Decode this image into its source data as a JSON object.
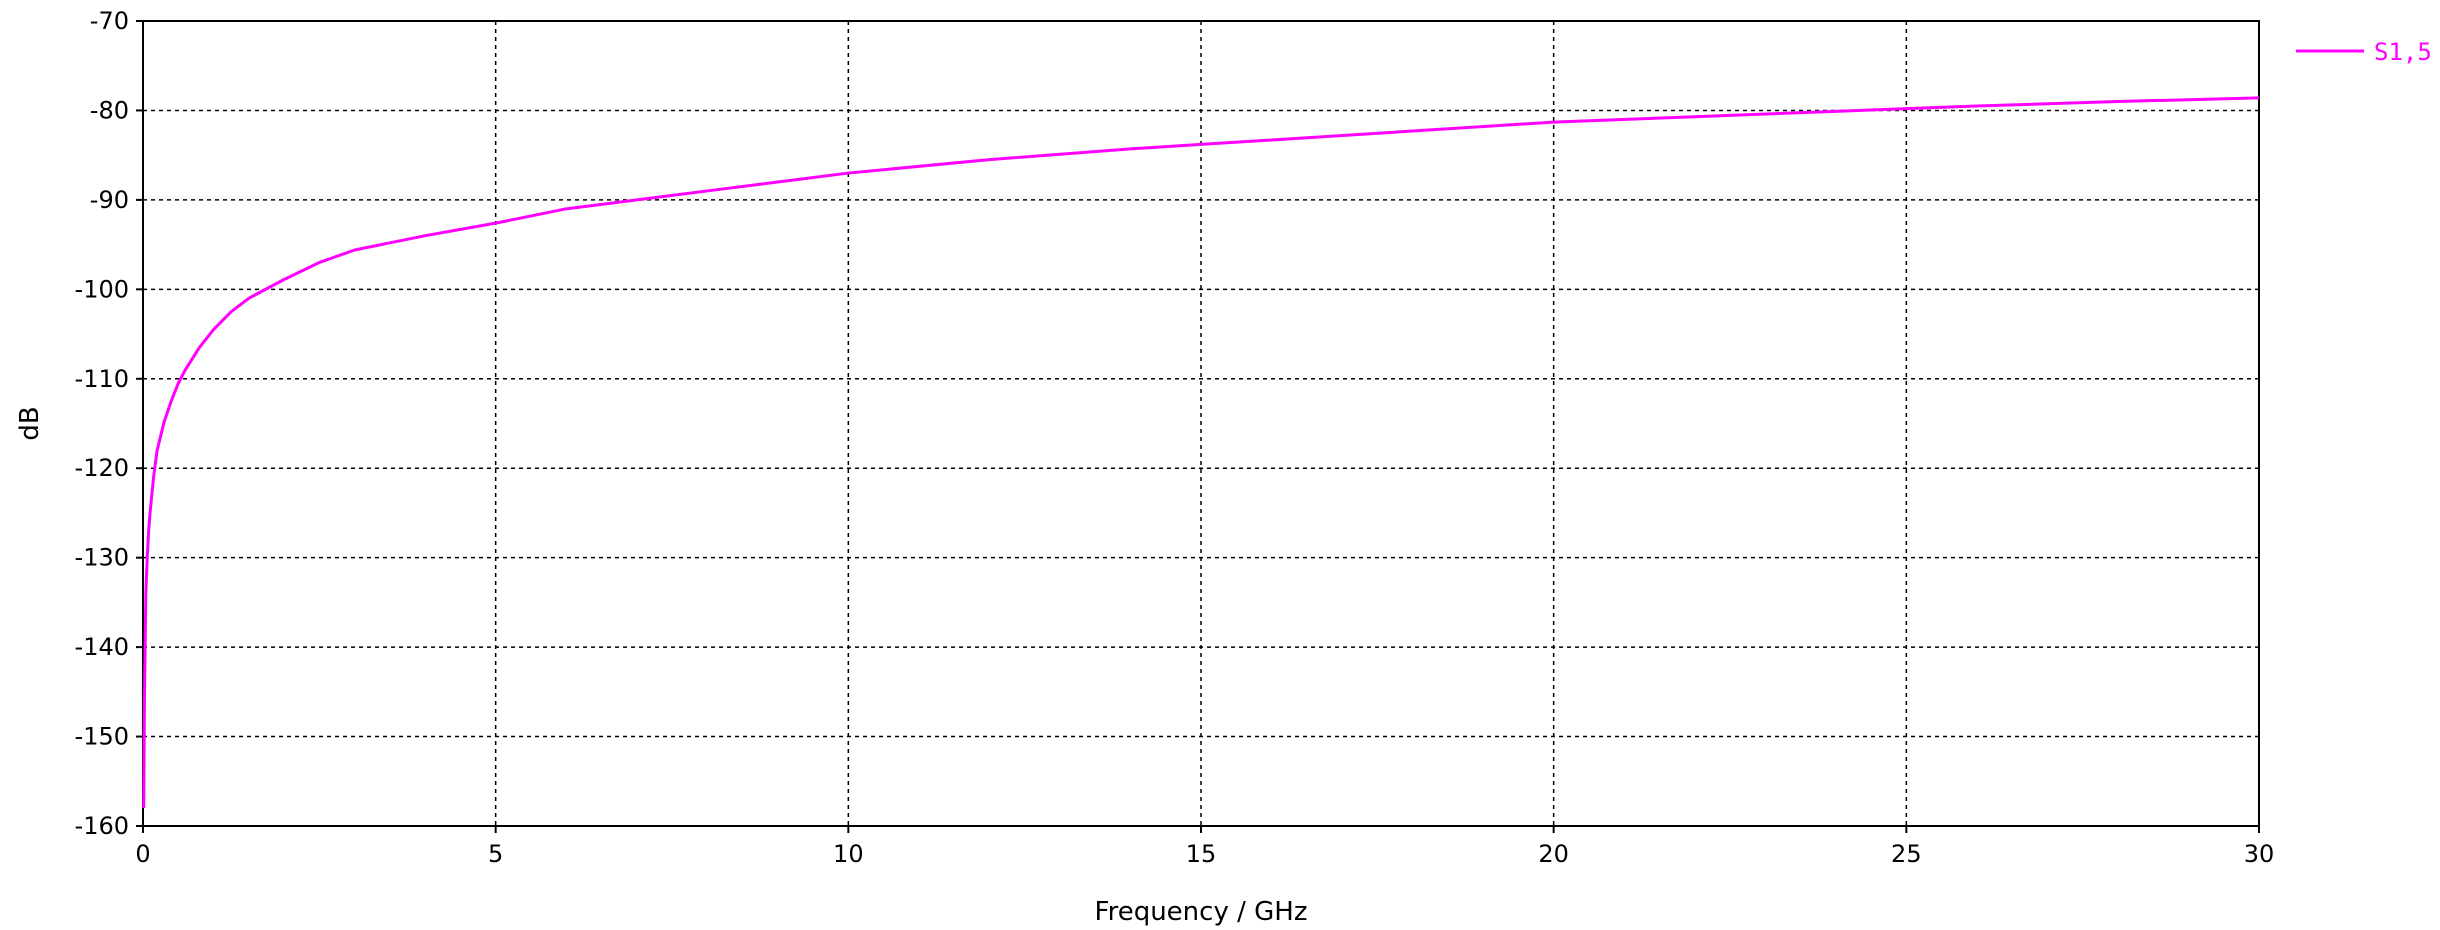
{
  "chart_data": {
    "type": "line",
    "xlabel": "Frequency / GHz",
    "ylabel": "dB",
    "xlim": [
      0,
      30
    ],
    "ylim": [
      -160,
      -70
    ],
    "x_ticks": [
      0,
      5,
      10,
      15,
      20,
      25,
      30
    ],
    "y_ticks": [
      -70,
      -80,
      -90,
      -100,
      -110,
      -120,
      -130,
      -140,
      -150,
      -160
    ],
    "grid": true,
    "legend_position": "top-right",
    "series": [
      {
        "name": "S1,5",
        "color": "#ff00ff",
        "x": [
          0.01,
          0.02,
          0.04,
          0.06,
          0.08,
          0.1,
          0.15,
          0.2,
          0.3,
          0.4,
          0.5,
          0.6,
          0.8,
          1.0,
          1.25,
          1.5,
          2.0,
          2.5,
          3.0,
          4.0,
          5.0,
          6.0,
          7.0,
          8.0,
          9.0,
          10.0,
          12.0,
          14.0,
          15.0,
          16.0,
          18.0,
          20.0,
          22.0,
          24.0,
          25.0,
          26.0,
          28.0,
          30.0
        ],
        "y": [
          -158.0,
          -146.0,
          -134.0,
          -130.0,
          -127.0,
          -125.0,
          -121.0,
          -118.0,
          -114.8,
          -112.5,
          -110.5,
          -109.0,
          -106.5,
          -104.5,
          -102.5,
          -101.0,
          -98.9,
          -97.0,
          -95.6,
          -94.0,
          -92.6,
          -91.0,
          -90.0,
          -89.0,
          -88.0,
          -87.0,
          -85.5,
          -84.3,
          -83.8,
          -83.3,
          -82.3,
          -81.3,
          -80.7,
          -80.1,
          -79.8,
          -79.5,
          -79.0,
          -78.6
        ]
      }
    ]
  }
}
